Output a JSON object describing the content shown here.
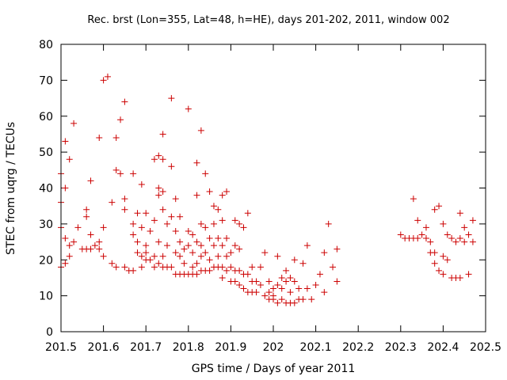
{
  "chart_data": {
    "type": "scatter",
    "title": "Rec. brst (Lon=355, Lat=48, h=HE), days 201-202, 2011, window 002",
    "xlabel": "GPS time / Days of year 2011",
    "ylabel": "STEC from uqrg / TECUs",
    "xlim": [
      201.5,
      202.5
    ],
    "ylim": [
      0,
      80
    ],
    "x_ticks": [
      201.5,
      201.6,
      201.7,
      201.8,
      201.9,
      202,
      202.1,
      202.2,
      202.3,
      202.4,
      202.5
    ],
    "x_tick_labels": [
      "201.5",
      "201.6",
      "201.7",
      "201.8",
      "201.9",
      "202",
      "202.1",
      "202.2",
      "202.3",
      "202.4",
      "202.5"
    ],
    "y_ticks": [
      0,
      10,
      20,
      30,
      40,
      50,
      60,
      70,
      80
    ],
    "y_tick_labels": [
      "0",
      "10",
      "20",
      "30",
      "40",
      "50",
      "60",
      "70",
      "80"
    ],
    "grid": false,
    "marker": "+",
    "color": "#cc0000",
    "series": [
      {
        "name": "STEC",
        "points": [
          [
            201.5,
            44
          ],
          [
            201.5,
            36
          ],
          [
            201.5,
            29
          ],
          [
            201.5,
            18
          ],
          [
            201.51,
            53
          ],
          [
            201.51,
            40
          ],
          [
            201.51,
            26
          ],
          [
            201.51,
            19
          ],
          [
            201.52,
            48
          ],
          [
            201.52,
            24
          ],
          [
            201.52,
            21
          ],
          [
            201.53,
            58
          ],
          [
            201.53,
            25
          ],
          [
            201.54,
            29
          ],
          [
            201.55,
            23
          ],
          [
            201.56,
            34
          ],
          [
            201.56,
            32
          ],
          [
            201.56,
            23
          ],
          [
            201.57,
            42
          ],
          [
            201.57,
            27
          ],
          [
            201.57,
            23
          ],
          [
            201.58,
            24
          ],
          [
            201.59,
            54
          ],
          [
            201.59,
            25
          ],
          [
            201.59,
            23
          ],
          [
            201.6,
            70
          ],
          [
            201.6,
            29
          ],
          [
            201.6,
            21
          ],
          [
            201.61,
            71
          ],
          [
            201.62,
            36
          ],
          [
            201.62,
            19
          ],
          [
            201.63,
            54
          ],
          [
            201.63,
            45
          ],
          [
            201.63,
            18
          ],
          [
            201.64,
            44
          ],
          [
            201.64,
            59
          ],
          [
            201.65,
            64
          ],
          [
            201.65,
            37
          ],
          [
            201.65,
            34
          ],
          [
            201.65,
            18
          ],
          [
            201.66,
            17
          ],
          [
            201.67,
            44
          ],
          [
            201.67,
            30
          ],
          [
            201.67,
            27
          ],
          [
            201.67,
            17
          ],
          [
            201.68,
            33
          ],
          [
            201.68,
            25
          ],
          [
            201.68,
            22
          ],
          [
            201.69,
            41
          ],
          [
            201.69,
            29
          ],
          [
            201.69,
            21
          ],
          [
            201.69,
            18
          ],
          [
            201.7,
            33
          ],
          [
            201.7,
            24
          ],
          [
            201.7,
            22
          ],
          [
            201.7,
            20
          ],
          [
            201.71,
            28
          ],
          [
            201.71,
            20
          ],
          [
            201.72,
            48
          ],
          [
            201.72,
            31
          ],
          [
            201.72,
            21
          ],
          [
            201.72,
            18
          ],
          [
            201.73,
            49
          ],
          [
            201.73,
            40
          ],
          [
            201.73,
            38
          ],
          [
            201.73,
            25
          ],
          [
            201.73,
            19
          ],
          [
            201.74,
            55
          ],
          [
            201.74,
            48
          ],
          [
            201.74,
            39
          ],
          [
            201.74,
            34
          ],
          [
            201.74,
            21
          ],
          [
            201.74,
            18
          ],
          [
            201.75,
            30
          ],
          [
            201.75,
            24
          ],
          [
            201.75,
            18
          ],
          [
            201.76,
            65
          ],
          [
            201.76,
            46
          ],
          [
            201.76,
            32
          ],
          [
            201.76,
            18
          ],
          [
            201.77,
            37
          ],
          [
            201.77,
            28
          ],
          [
            201.77,
            22
          ],
          [
            201.77,
            16
          ],
          [
            201.78,
            32
          ],
          [
            201.78,
            25
          ],
          [
            201.78,
            21
          ],
          [
            201.78,
            16
          ],
          [
            201.79,
            23
          ],
          [
            201.79,
            19
          ],
          [
            201.79,
            16
          ],
          [
            201.8,
            62
          ],
          [
            201.8,
            28
          ],
          [
            201.8,
            24
          ],
          [
            201.8,
            16
          ],
          [
            201.81,
            27
          ],
          [
            201.81,
            22
          ],
          [
            201.81,
            18
          ],
          [
            201.81,
            16
          ],
          [
            201.82,
            47
          ],
          [
            201.82,
            38
          ],
          [
            201.82,
            25
          ],
          [
            201.82,
            19
          ],
          [
            201.82,
            16
          ],
          [
            201.83,
            56
          ],
          [
            201.83,
            30
          ],
          [
            201.83,
            24
          ],
          [
            201.83,
            21
          ],
          [
            201.83,
            17
          ],
          [
            201.84,
            44
          ],
          [
            201.84,
            29
          ],
          [
            201.84,
            22
          ],
          [
            201.84,
            17
          ],
          [
            201.85,
            39
          ],
          [
            201.85,
            26
          ],
          [
            201.85,
            20
          ],
          [
            201.85,
            17
          ],
          [
            201.86,
            35
          ],
          [
            201.86,
            30
          ],
          [
            201.86,
            24
          ],
          [
            201.86,
            18
          ],
          [
            201.87,
            34
          ],
          [
            201.87,
            26
          ],
          [
            201.87,
            21
          ],
          [
            201.87,
            18
          ],
          [
            201.88,
            38
          ],
          [
            201.88,
            31
          ],
          [
            201.88,
            24
          ],
          [
            201.88,
            18
          ],
          [
            201.88,
            15
          ],
          [
            201.89,
            39
          ],
          [
            201.89,
            26
          ],
          [
            201.89,
            21
          ],
          [
            201.89,
            17
          ],
          [
            201.9,
            22
          ],
          [
            201.9,
            18
          ],
          [
            201.9,
            14
          ],
          [
            201.91,
            31
          ],
          [
            201.91,
            24
          ],
          [
            201.91,
            17
          ],
          [
            201.91,
            14
          ],
          [
            201.92,
            30
          ],
          [
            201.92,
            23
          ],
          [
            201.92,
            17
          ],
          [
            201.92,
            13
          ],
          [
            201.93,
            29
          ],
          [
            201.93,
            16
          ],
          [
            201.93,
            12
          ],
          [
            201.94,
            33
          ],
          [
            201.94,
            16
          ],
          [
            201.94,
            11
          ],
          [
            201.95,
            18
          ],
          [
            201.95,
            14
          ],
          [
            201.95,
            11
          ],
          [
            201.96,
            14
          ],
          [
            201.96,
            11
          ],
          [
            201.97,
            18
          ],
          [
            201.97,
            13
          ],
          [
            201.98,
            22
          ],
          [
            201.98,
            10
          ],
          [
            201.99,
            14
          ],
          [
            201.99,
            11
          ],
          [
            201.99,
            9
          ],
          [
            202,
            12
          ],
          [
            202,
            10
          ],
          [
            202,
            9
          ],
          [
            202.01,
            21
          ],
          [
            202.01,
            13
          ],
          [
            202.01,
            8
          ],
          [
            202.02,
            15
          ],
          [
            202.02,
            12
          ],
          [
            202.02,
            9
          ],
          [
            202.03,
            17
          ],
          [
            202.03,
            14
          ],
          [
            202.03,
            8
          ],
          [
            202.04,
            15
          ],
          [
            202.04,
            11
          ],
          [
            202.04,
            8
          ],
          [
            202.05,
            20
          ],
          [
            202.05,
            14
          ],
          [
            202.05,
            8
          ],
          [
            202.06,
            12
          ],
          [
            202.06,
            9
          ],
          [
            202.07,
            19
          ],
          [
            202.07,
            9
          ],
          [
            202.08,
            24
          ],
          [
            202.08,
            12
          ],
          [
            202.09,
            9
          ],
          [
            202.1,
            13
          ],
          [
            202.11,
            16
          ],
          [
            202.12,
            22
          ],
          [
            202.12,
            11
          ],
          [
            202.13,
            30
          ],
          [
            202.14,
            18
          ],
          [
            202.15,
            23
          ],
          [
            202.15,
            14
          ],
          [
            202.3,
            27
          ],
          [
            202.31,
            26
          ],
          [
            202.32,
            26
          ],
          [
            202.33,
            26
          ],
          [
            202.33,
            37
          ],
          [
            202.34,
            31
          ],
          [
            202.34,
            26
          ],
          [
            202.35,
            27
          ],
          [
            202.36,
            29
          ],
          [
            202.36,
            26
          ],
          [
            202.37,
            25
          ],
          [
            202.37,
            22
          ],
          [
            202.38,
            34
          ],
          [
            202.38,
            22
          ],
          [
            202.38,
            19
          ],
          [
            202.39,
            35
          ],
          [
            202.39,
            17
          ],
          [
            202.4,
            30
          ],
          [
            202.4,
            21
          ],
          [
            202.4,
            16
          ],
          [
            202.41,
            27
          ],
          [
            202.41,
            20
          ],
          [
            202.42,
            26
          ],
          [
            202.42,
            15
          ],
          [
            202.43,
            25
          ],
          [
            202.43,
            15
          ],
          [
            202.44,
            33
          ],
          [
            202.44,
            26
          ],
          [
            202.44,
            15
          ],
          [
            202.45,
            29
          ],
          [
            202.45,
            25
          ],
          [
            202.46,
            27
          ],
          [
            202.46,
            16
          ],
          [
            202.47,
            31
          ],
          [
            202.47,
            25
          ]
        ]
      }
    ]
  }
}
